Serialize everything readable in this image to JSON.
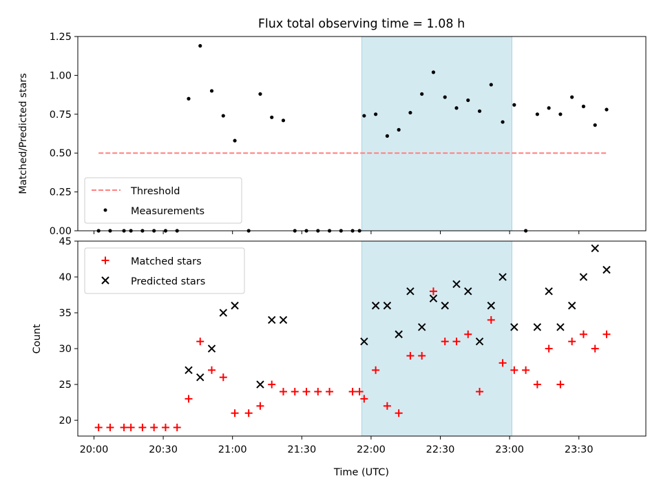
{
  "chart_data": [
    {
      "type": "scatter",
      "title": "Flux total observing time = 1.08 h",
      "xlabel": "",
      "ylabel": "Matched/Predicted stars",
      "xlim": [
        "19:53",
        "23:59"
      ],
      "ylim": [
        0,
        1.25
      ],
      "yticks": [
        "0.00",
        "0.25",
        "0.50",
        "0.75",
        "1.00",
        "1.25"
      ],
      "highlight_span": {
        "start": "21:56",
        "end": "23:01",
        "color": "#d4eaf1"
      },
      "legend": {
        "position": "bottom-left",
        "entries": [
          "Threshold",
          "Measurements"
        ]
      },
      "series": [
        {
          "name": "Threshold",
          "kind": "dashed-line",
          "color": "#ff7f7f",
          "points": [
            [
              "20:02",
              0.5
            ],
            [
              "23:42",
              0.5
            ]
          ]
        },
        {
          "name": "Measurements",
          "kind": "dot",
          "color": "#000000",
          "points": [
            [
              "20:02",
              0.0
            ],
            [
              "20:07",
              0.0
            ],
            [
              "20:13",
              0.0
            ],
            [
              "20:16",
              0.0
            ],
            [
              "20:21",
              0.0
            ],
            [
              "20:26",
              0.0
            ],
            [
              "20:31",
              0.0
            ],
            [
              "20:36",
              0.0
            ],
            [
              "20:41",
              0.85
            ],
            [
              "20:46",
              1.19
            ],
            [
              "20:51",
              0.9
            ],
            [
              "20:56",
              0.74
            ],
            [
              "21:01",
              0.58
            ],
            [
              "21:07",
              0.0
            ],
            [
              "21:12",
              0.88
            ],
            [
              "21:17",
              0.73
            ],
            [
              "21:22",
              0.71
            ],
            [
              "21:27",
              0.0
            ],
            [
              "21:32",
              0.0
            ],
            [
              "21:37",
              0.0
            ],
            [
              "21:42",
              0.0
            ],
            [
              "21:47",
              0.0
            ],
            [
              "21:52",
              0.0
            ],
            [
              "21:55",
              0.0
            ],
            [
              "21:57",
              0.74
            ],
            [
              "22:02",
              0.75
            ],
            [
              "22:07",
              0.61
            ],
            [
              "22:12",
              0.65
            ],
            [
              "22:17",
              0.76
            ],
            [
              "22:22",
              0.88
            ],
            [
              "22:27",
              1.02
            ],
            [
              "22:32",
              0.86
            ],
            [
              "22:37",
              0.79
            ],
            [
              "22:42",
              0.84
            ],
            [
              "22:47",
              0.77
            ],
            [
              "22:52",
              0.94
            ],
            [
              "22:57",
              0.7
            ],
            [
              "23:02",
              0.81
            ],
            [
              "23:07",
              0.0
            ],
            [
              "23:12",
              0.75
            ],
            [
              "23:17",
              0.79
            ],
            [
              "23:22",
              0.75
            ],
            [
              "23:27",
              0.86
            ],
            [
              "23:32",
              0.8
            ],
            [
              "23:37",
              0.68
            ],
            [
              "23:42",
              0.78
            ]
          ]
        }
      ]
    },
    {
      "type": "scatter",
      "title": "",
      "xlabel": "Time (UTC)",
      "ylabel": "Count",
      "xlim": [
        "19:53",
        "23:59"
      ],
      "ylim": [
        17.8,
        45
      ],
      "yticks": [
        "20",
        "25",
        "30",
        "35",
        "40",
        "45"
      ],
      "xticks": [
        "20:00",
        "20:30",
        "21:00",
        "21:30",
        "22:00",
        "22:30",
        "23:00",
        "23:30"
      ],
      "highlight_span": {
        "start": "21:56",
        "end": "23:01",
        "color": "#d4eaf1"
      },
      "legend": {
        "position": "top-left",
        "entries": [
          "Matched stars",
          "Predicted stars"
        ]
      },
      "series": [
        {
          "name": "Matched stars",
          "marker": "plus",
          "color": "#ff0000",
          "points": [
            [
              "20:02",
              19
            ],
            [
              "20:07",
              19
            ],
            [
              "20:13",
              19
            ],
            [
              "20:16",
              19
            ],
            [
              "20:21",
              19
            ],
            [
              "20:26",
              19
            ],
            [
              "20:31",
              19
            ],
            [
              "20:36",
              19
            ],
            [
              "20:41",
              23
            ],
            [
              "20:46",
              31
            ],
            [
              "20:51",
              27
            ],
            [
              "20:56",
              26
            ],
            [
              "21:01",
              21
            ],
            [
              "21:07",
              21
            ],
            [
              "21:12",
              22
            ],
            [
              "21:17",
              25
            ],
            [
              "21:22",
              24
            ],
            [
              "21:27",
              24
            ],
            [
              "21:32",
              24
            ],
            [
              "21:37",
              24
            ],
            [
              "21:42",
              24
            ],
            [
              "21:52",
              24
            ],
            [
              "21:55",
              24
            ],
            [
              "21:57",
              23
            ],
            [
              "22:02",
              27
            ],
            [
              "22:07",
              22
            ],
            [
              "22:12",
              21
            ],
            [
              "22:17",
              29
            ],
            [
              "22:22",
              29
            ],
            [
              "22:27",
              38
            ],
            [
              "22:32",
              31
            ],
            [
              "22:37",
              31
            ],
            [
              "22:42",
              32
            ],
            [
              "22:47",
              24
            ],
            [
              "22:52",
              34
            ],
            [
              "22:57",
              28
            ],
            [
              "23:02",
              27
            ],
            [
              "23:07",
              27
            ],
            [
              "23:12",
              25
            ],
            [
              "23:17",
              30
            ],
            [
              "23:22",
              25
            ],
            [
              "23:27",
              31
            ],
            [
              "23:32",
              32
            ],
            [
              "23:37",
              30
            ],
            [
              "23:42",
              32
            ]
          ]
        },
        {
          "name": "Predicted stars",
          "marker": "x",
          "color": "#000000",
          "points": [
            [
              "20:41",
              27
            ],
            [
              "20:46",
              26
            ],
            [
              "20:51",
              30
            ],
            [
              "20:56",
              35
            ],
            [
              "21:01",
              36
            ],
            [
              "21:12",
              25
            ],
            [
              "21:17",
              34
            ],
            [
              "21:22",
              34
            ],
            [
              "21:57",
              31
            ],
            [
              "22:02",
              36
            ],
            [
              "22:07",
              36
            ],
            [
              "22:12",
              32
            ],
            [
              "22:17",
              38
            ],
            [
              "22:22",
              33
            ],
            [
              "22:27",
              37
            ],
            [
              "22:32",
              36
            ],
            [
              "22:37",
              39
            ],
            [
              "22:42",
              38
            ],
            [
              "22:47",
              31
            ],
            [
              "22:52",
              36
            ],
            [
              "22:57",
              40
            ],
            [
              "23:02",
              33
            ],
            [
              "23:12",
              33
            ],
            [
              "23:17",
              38
            ],
            [
              "23:22",
              33
            ],
            [
              "23:27",
              36
            ],
            [
              "23:32",
              40
            ],
            [
              "23:37",
              44
            ],
            [
              "23:42",
              41
            ]
          ]
        }
      ]
    }
  ]
}
